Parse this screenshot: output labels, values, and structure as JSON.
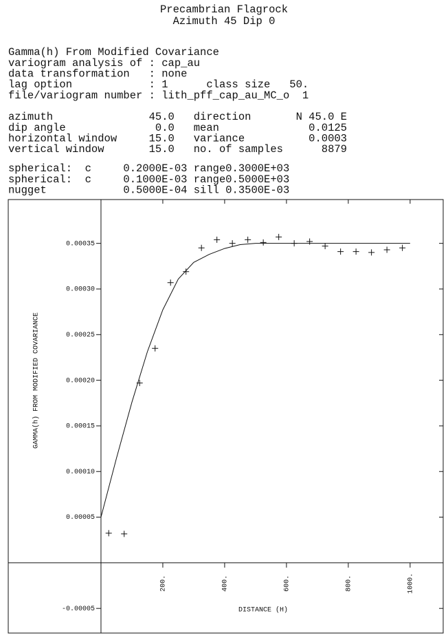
{
  "chart_data": {
    "type": "scatter",
    "title": "Precambrian Flagrock",
    "subtitle": "Azimuth 45 Dip 0",
    "text_blocks": [
      [
        "Gamma(h) From Modified Covariance",
        "variogram analysis of : cap_au",
        "data transformation   : none",
        "lag option            : 1      class size   50.",
        "file/variogram number : lith_pff_cap_au_MC_o  1"
      ],
      [
        "azimuth               45.0   direction       N 45.0 E",
        "dip angle              0.0   mean              0.0125",
        "horizontal window     15.0   variance          0.0003",
        "vertical window       15.0   no. of samples      8879"
      ],
      [
        "spherical:  c     0.2000E-03 range0.3000E+03",
        "spherical:  c     0.1000E-03 range0.5000E+03",
        "nugget            0.5000E-04 sill 0.3500E-03"
      ]
    ],
    "x_label": "DISTANCE (H)",
    "y_label": "GAMMA(h) FROM MODIFIED COVARIANCE",
    "xlim": [
      -300,
      1107
    ],
    "ylim": [
      -7.7e-05,
      0.000398
    ],
    "xticks": [
      {
        "value": 200,
        "label": "200."
      },
      {
        "value": 400,
        "label": "400."
      },
      {
        "value": 600,
        "label": "600."
      },
      {
        "value": 800,
        "label": "800."
      },
      {
        "value": 1000,
        "label": "1000."
      }
    ],
    "yticks": [
      -5e-05,
      5e-05,
      {
        "value": 0.0001,
        "label": "0.00010"
      },
      0.00015,
      {
        "value": 0.0002,
        "label": "0.00020"
      },
      0.00025,
      {
        "value": 0.0003,
        "label": "0.00030"
      },
      0.00035
    ],
    "series": [
      {
        "type": "scatter",
        "color": "#000000",
        "x": [
          25,
          75,
          125,
          175,
          225,
          275,
          325,
          375,
          425,
          475,
          525,
          575,
          625,
          675,
          725,
          775,
          825,
          875,
          925,
          975
        ],
        "values": [
          3.24e-05,
          3.17e-05,
          0.000197,
          0.000235,
          0.000307,
          0.000319,
          0.000345,
          0.000354,
          0.00035,
          0.000354,
          0.000351,
          0.000357,
          0.00035,
          0.000352,
          0.000347,
          0.000341,
          0.000341,
          0.00034,
          0.000343,
          0.000345
        ]
      },
      {
        "type": "line",
        "color": "#000000",
        "x": [
          0,
          50,
          100,
          150,
          200,
          250,
          300,
          350,
          400,
          450,
          500,
          600,
          700,
          800,
          900,
          1000
        ],
        "values": [
          5e-05,
          0.0001145,
          0.0001759,
          0.0002312,
          0.0002772,
          0.0003109,
          0.0003292,
          0.0003379,
          0.0003444,
          0.0003486,
          0.00035,
          0.00035,
          0.00035,
          0.00035,
          0.00035,
          0.00035
        ]
      }
    ]
  }
}
